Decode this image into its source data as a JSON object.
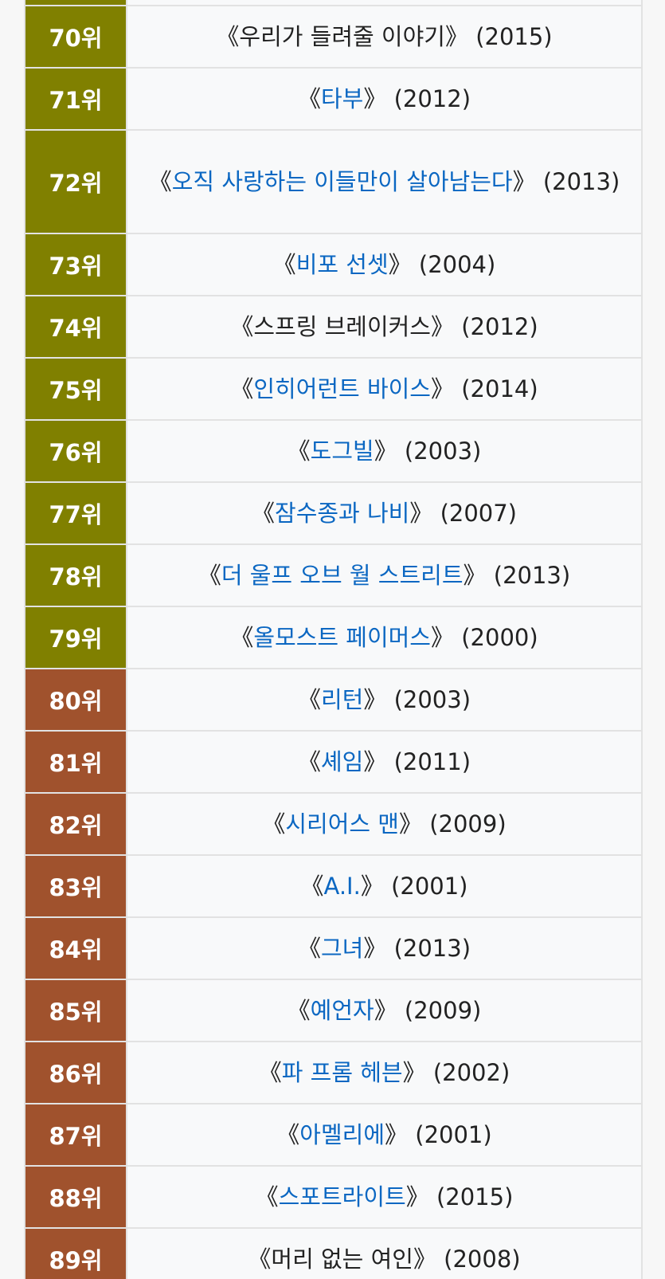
{
  "rows": [
    {
      "rank": "",
      "title": "",
      "year": "",
      "linked": false,
      "tier": "olive"
    },
    {
      "rank": "70위",
      "title": "우리가 들려줄 이야기",
      "year": "(2015)",
      "linked": false,
      "tier": "olive"
    },
    {
      "rank": "71위",
      "title": "타부",
      "year": "(2012)",
      "linked": true,
      "tier": "olive"
    },
    {
      "rank": "72위",
      "title": "오직 사랑하는 이들만이 살아남는다",
      "year": "(2013)",
      "linked": true,
      "tier": "olive"
    },
    {
      "rank": "73위",
      "title": "비포 선셋",
      "year": "(2004)",
      "linked": true,
      "tier": "olive"
    },
    {
      "rank": "74위",
      "title": "스프링 브레이커스",
      "year": "(2012)",
      "linked": false,
      "tier": "olive"
    },
    {
      "rank": "75위",
      "title": "인히어런트 바이스",
      "year": "(2014)",
      "linked": true,
      "tier": "olive"
    },
    {
      "rank": "76위",
      "title": "도그빌",
      "year": "(2003)",
      "linked": true,
      "tier": "olive"
    },
    {
      "rank": "77위",
      "title": "잠수종과 나비",
      "year": "(2007)",
      "linked": true,
      "tier": "olive"
    },
    {
      "rank": "78위",
      "title": "더 울프 오브 월 스트리트",
      "year": "(2013)",
      "linked": true,
      "tier": "olive"
    },
    {
      "rank": "79위",
      "title": "올모스트 페이머스",
      "year": "(2000)",
      "linked": true,
      "tier": "olive"
    },
    {
      "rank": "80위",
      "title": "리턴",
      "year": "(2003)",
      "linked": true,
      "tier": "brown"
    },
    {
      "rank": "81위",
      "title": "셰임",
      "year": "(2011)",
      "linked": true,
      "tier": "brown"
    },
    {
      "rank": "82위",
      "title": "시리어스 맨",
      "year": "(2009)",
      "linked": true,
      "tier": "brown"
    },
    {
      "rank": "83위",
      "title": "A.I.",
      "year": "(2001)",
      "linked": true,
      "tier": "brown"
    },
    {
      "rank": "84위",
      "title": "그녀",
      "year": "(2013)",
      "linked": true,
      "tier": "brown"
    },
    {
      "rank": "85위",
      "title": "예언자",
      "year": "(2009)",
      "linked": true,
      "tier": "brown"
    },
    {
      "rank": "86위",
      "title": "파 프롬 헤븐",
      "year": "(2002)",
      "linked": true,
      "tier": "brown"
    },
    {
      "rank": "87위",
      "title": "아멜리에",
      "year": "(2001)",
      "linked": true,
      "tier": "brown"
    },
    {
      "rank": "88위",
      "title": "스포트라이트",
      "year": "(2015)",
      "linked": true,
      "tier": "brown"
    },
    {
      "rank": "89위",
      "title": "머리 없는 여인",
      "year": "(2008)",
      "linked": false,
      "tier": "brown"
    }
  ],
  "brackets": {
    "open": "《",
    "close": "》"
  },
  "colors": {
    "olive": "#808000",
    "brown": "#a0522d",
    "link": "#0b67c2",
    "text": "#222222"
  }
}
